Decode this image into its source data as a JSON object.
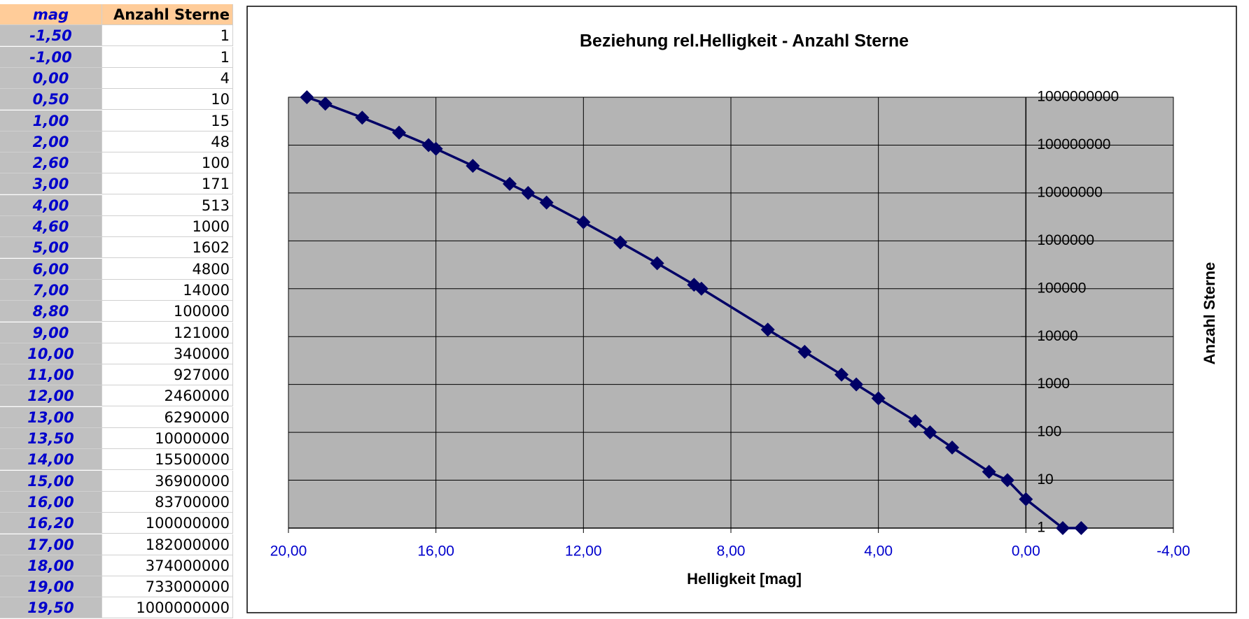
{
  "table": {
    "header": [
      "mag",
      "Anzahl Sterne"
    ],
    "rows": [
      [
        "-1,50",
        "1"
      ],
      [
        "-1,00",
        "1"
      ],
      [
        "0,00",
        "4"
      ],
      [
        "0,50",
        "10"
      ],
      [
        "1,00",
        "15"
      ],
      [
        "2,00",
        "48"
      ],
      [
        "2,60",
        "100"
      ],
      [
        "3,00",
        "171"
      ],
      [
        "4,00",
        "513"
      ],
      [
        "4,60",
        "1000"
      ],
      [
        "5,00",
        "1602"
      ],
      [
        "6,00",
        "4800"
      ],
      [
        "7,00",
        "14000"
      ],
      [
        "8,80",
        "100000"
      ],
      [
        "9,00",
        "121000"
      ],
      [
        "10,00",
        "340000"
      ],
      [
        "11,00",
        "927000"
      ],
      [
        "12,00",
        "2460000"
      ],
      [
        "13,00",
        "6290000"
      ],
      [
        "13,50",
        "10000000"
      ],
      [
        "14,00",
        "15500000"
      ],
      [
        "15,00",
        "36900000"
      ],
      [
        "16,00",
        "83700000"
      ],
      [
        "16,20",
        "100000000"
      ],
      [
        "17,00",
        "182000000"
      ],
      [
        "18,00",
        "374000000"
      ],
      [
        "19,00",
        "733000000"
      ],
      [
        "19,50",
        "1000000000"
      ]
    ]
  },
  "chart_data": {
    "type": "line",
    "title": "Beziehung rel.Helligkeit - Anzahl Sterne",
    "x_label": "Helligkeit [mag]",
    "y_label": "Anzahl Sterne",
    "x": [
      -1.5,
      -1,
      0,
      0.5,
      1,
      2,
      2.6,
      3,
      4,
      4.6,
      5,
      6,
      7,
      8.8,
      9,
      10,
      11,
      12,
      13,
      13.5,
      14,
      15,
      16,
      16.2,
      17,
      18,
      19,
      19.5
    ],
    "series": [
      {
        "color": "#000066",
        "values": [
          1,
          1,
          4,
          10,
          15,
          48,
          100,
          171,
          513,
          1000,
          1602,
          4800,
          14000,
          100000,
          121000,
          340000,
          927000,
          2460000,
          6290000,
          10000000,
          15500000,
          36900000,
          83700000,
          100000000,
          182000000,
          374000000,
          733000000,
          1000000000
        ]
      }
    ],
    "xlim": [
      20,
      -4
    ],
    "xticks": [
      {
        "value": 20,
        "label": "20,00"
      },
      {
        "value": 16,
        "label": "16,00"
      },
      {
        "value": 12,
        "label": "12,00"
      },
      {
        "value": 8,
        "label": "8,00"
      },
      {
        "value": 4,
        "label": "4,00"
      },
      {
        "value": 0,
        "label": "0,00"
      },
      {
        "value": -4,
        "label": "-4,00"
      }
    ],
    "ylim": [
      1,
      1000000000
    ],
    "yticks": [
      1,
      10,
      100,
      1000,
      10000,
      100000,
      1000000,
      10000000,
      100000000,
      1000000000
    ],
    "y_scale": "log",
    "y_axis_crossing": 0,
    "grid": true,
    "plot_background": "#b4b4b4"
  }
}
